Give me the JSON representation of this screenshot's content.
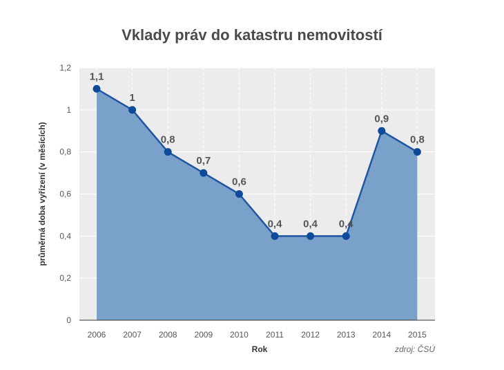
{
  "chart_data": {
    "type": "area",
    "title": "Vklady práv do katastru nemovitostí",
    "xlabel": "Rok",
    "ylabel": "průměrná doba vyřízení (v měsících)",
    "source": "zdroj: ČSÚ",
    "categories": [
      "2006",
      "2007",
      "2008",
      "2009",
      "2010",
      "2011",
      "2012",
      "2013",
      "2014",
      "2015"
    ],
    "values": [
      1.1,
      1.0,
      0.8,
      0.7,
      0.6,
      0.4,
      0.4,
      0.4,
      0.9,
      0.8
    ],
    "data_labels": [
      "1,1",
      "1",
      "0,8",
      "0,7",
      "0,6",
      "0,4",
      "0,4",
      "0,4",
      "0,9",
      "0,8"
    ],
    "yticks": [
      0,
      0.2,
      0.4,
      0.6,
      0.8,
      1.0,
      1.2
    ],
    "ytick_labels": [
      "0",
      "0,2",
      "0,4",
      "0,6",
      "0,8",
      "1",
      "1,2"
    ],
    "ylim": [
      0,
      1.2
    ],
    "grid": true,
    "legend": false,
    "colors": {
      "fill": "#7aa1c9",
      "line": "#1f55a3",
      "marker": "#0f4a9a",
      "plot_bg": "#ececec"
    }
  }
}
